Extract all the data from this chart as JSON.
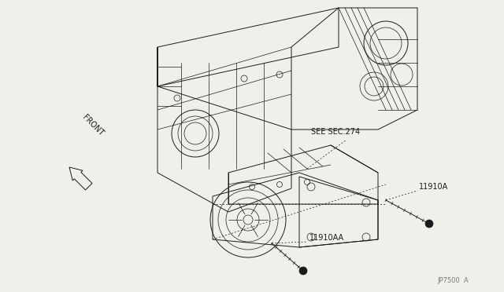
{
  "bg_color": "#f0f0ea",
  "line_color": "#1a1a1a",
  "text_color": "#1a1a1a",
  "label_11910A": "11910A",
  "label_11910AA": "11910AA",
  "label_see_sec": "SEE SEC.274",
  "label_front": "FRONT",
  "label_jp7500": "JP7500  A",
  "figsize": [
    6.4,
    3.72
  ],
  "dpi": 100
}
